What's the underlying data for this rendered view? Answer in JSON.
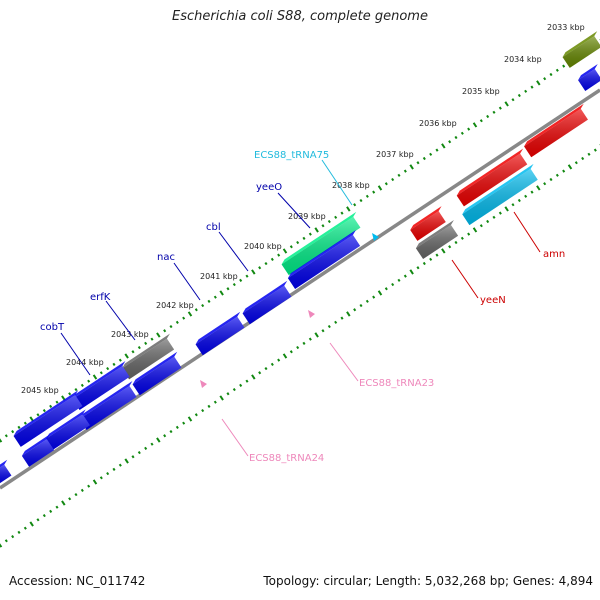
{
  "title": "Escherichia coli S88, complete genome",
  "footer": {
    "accession": "Accession: NC_011742",
    "summary": "Topology: circular; Length: 5,032,268 bp; Genes: 4,894"
  },
  "ticks": [
    {
      "label": "2033 kbp"
    },
    {
      "label": "2034 kbp"
    },
    {
      "label": "2035 kbp"
    },
    {
      "label": "2036 kbp"
    },
    {
      "label": "2037 kbp"
    },
    {
      "label": "2038 kbp"
    },
    {
      "label": "2039 kbp"
    },
    {
      "label": "2040 kbp"
    },
    {
      "label": "2041 kbp"
    },
    {
      "label": "2042 kbp"
    },
    {
      "label": "2043 kbp"
    },
    {
      "label": "2044 kbp"
    },
    {
      "label": "2045 kbp"
    }
  ],
  "gene_labels": [
    {
      "text": "cobT",
      "color": "#0000aa"
    },
    {
      "text": "erfK",
      "color": "#0000aa"
    },
    {
      "text": "nac",
      "color": "#0000aa"
    },
    {
      "text": "cbl",
      "color": "#0000aa"
    },
    {
      "text": "yeeO",
      "color": "#0000aa"
    },
    {
      "text": "ECS88_tRNA75",
      "color": "#22bbdd"
    },
    {
      "text": "amn",
      "color": "#cc0000"
    },
    {
      "text": "yeeN",
      "color": "#cc0000"
    },
    {
      "text": "ECS88_tRNA23",
      "color": "#ee88bb"
    },
    {
      "text": "ECS88_tRNA24",
      "color": "#ee88bb"
    }
  ],
  "colors": {
    "forward_gene": "#0000ee",
    "red_gene": "#ee0000",
    "pseudo_gene": "#666666",
    "rrna_gene": "#00ee88",
    "cyan_gene": "#00bbee",
    "olive_gene": "#668800",
    "tick_green": "#118811",
    "backbone": "#888888"
  }
}
